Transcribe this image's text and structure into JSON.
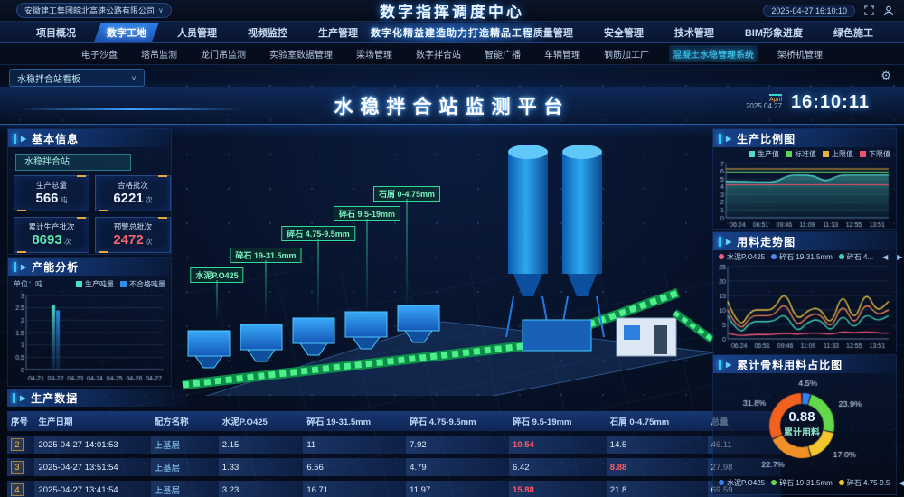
{
  "topbar": {
    "company": "安徽建工集团皖北高速公路有限公司",
    "title": "数字指挥调度中心",
    "datetime": "2025-04-27 16:10:10"
  },
  "nav": {
    "left": [
      "项目概况",
      "数字工地",
      "人员管理",
      "视频监控",
      "生产管理"
    ],
    "active": "数字工地",
    "banner": "数字化精益建造助力打造精品工程",
    "right": [
      "质量管理",
      "安全管理",
      "技术管理",
      "BIM形象进度",
      "绿色施工"
    ]
  },
  "subnav": {
    "items": [
      "电子沙盘",
      "塔吊监测",
      "龙门吊监测",
      "实验室数据管理",
      "梁场管理",
      "数字拌合站",
      "智能广播",
      "车辆管理",
      "钢筋加工厂",
      "混凝土水稳管理系统",
      "架桥机管理"
    ],
    "active": "混凝土水稳管理系统"
  },
  "board": {
    "selector": "水稳拌合站看板"
  },
  "hero": {
    "title": "水稳拌合站监测平台",
    "month": "April",
    "date": "2025.04.27",
    "time": "16:10:11"
  },
  "basic_info": {
    "title": "基本信息",
    "station_tag": "水稳拌合站",
    "stats": [
      {
        "label": "生产总量",
        "value": "566",
        "unit": "吨",
        "color": "#eaf4ff"
      },
      {
        "label": "合格批次",
        "value": "6221",
        "unit": "次",
        "color": "#eaf4ff"
      },
      {
        "label": "累计生产批次",
        "value": "8693",
        "unit": "次",
        "color": "#5ee8b0"
      },
      {
        "label": "预警总批次",
        "value": "2472",
        "unit": "次",
        "color": "#f56470"
      }
    ]
  },
  "production_table": {
    "title": "生产数据",
    "headers": [
      "序号",
      "生产日期",
      "配方名称",
      "水泥P.O425",
      "碎石 19-31.5mm",
      "碎石 4.75-9.5mm",
      "碎石 9.5-19mm",
      "石屑 0-4.75mm",
      "总量"
    ],
    "rows": [
      {
        "cells": [
          "2",
          "2025-04-27 14:01:53",
          "上基层",
          "2.15",
          "11",
          "7.92",
          "10.54",
          "14.5",
          "46.11"
        ],
        "alert_cols": [
          6
        ]
      },
      {
        "cells": [
          "3",
          "2025-04-27 13:51:54",
          "上基层",
          "1.33",
          "6.56",
          "4.79",
          "6.42",
          "8.88",
          "27.98"
        ],
        "alert_cols": [
          7
        ]
      },
      {
        "cells": [
          "4",
          "2025-04-27 13:41:54",
          "上基层",
          "3.23",
          "16.71",
          "11.97",
          "15.88",
          "21.8",
          "69.59"
        ],
        "alert_cols": [
          6
        ]
      }
    ]
  },
  "scene": {
    "labels": [
      "水泥P.O425",
      "碎石 19-31.5mm",
      "碎石 4.75-9.5mm",
      "碎石 9.5-19mm",
      "石屑 0-4.75mm"
    ]
  },
  "chart_data": [
    {
      "id": "capacity",
      "type": "bar",
      "title": "产能分析",
      "unit_label": "单位：吨",
      "categories": [
        "04-21",
        "04-22",
        "04-23",
        "04-24",
        "04-25",
        "04-26",
        "04-27"
      ],
      "series": [
        {
          "name": "生产吨量",
          "color": "#49e0c8",
          "values": [
            0,
            2.6,
            0,
            0,
            0,
            0,
            0
          ]
        },
        {
          "name": "不合格吨量",
          "color": "#2f8fe8",
          "values": [
            0,
            2.4,
            0,
            0,
            0,
            0,
            0
          ]
        }
      ],
      "ylim": [
        0,
        3
      ],
      "yticks": [
        0,
        0.5,
        1,
        1.5,
        2,
        2.5,
        3
      ],
      "legend_position": "top-right",
      "grid": true
    },
    {
      "id": "ratio",
      "type": "area",
      "title": "生产比例图",
      "x": [
        "06:24",
        "06:51",
        "09:46",
        "11:09",
        "11:33",
        "12:55",
        "13:51"
      ],
      "ylim": [
        0,
        7
      ],
      "yticks": [
        0,
        1,
        2,
        3,
        4,
        5,
        6,
        7
      ],
      "series": [
        {
          "name": "生产值",
          "color": "#52d8c8",
          "kind": "area",
          "values": [
            4.7,
            4.7,
            4.65,
            4.6,
            4.6,
            5.5,
            5.5,
            5.45,
            4.6,
            5.5,
            5.5,
            5.5,
            5.5,
            5.5
          ]
        },
        {
          "name": "标准值",
          "color": "#55d455",
          "kind": "line",
          "values": [
            5.9,
            5.9,
            5.9,
            5.9,
            5.9,
            5.9,
            5.9,
            5.9,
            5.9,
            5.9,
            5.9,
            5.9,
            5.9,
            5.9
          ]
        },
        {
          "name": "上限值",
          "color": "#e8b33e",
          "kind": "line",
          "values": [
            6.3,
            6.3,
            6.3,
            6.3,
            6.3,
            6.3,
            6.3,
            6.3,
            6.3,
            6.3,
            6.3,
            6.3,
            6.3,
            6.3
          ]
        },
        {
          "name": "下限值",
          "color": "#f0506a",
          "kind": "line",
          "values": [
            4.25,
            4.25,
            4.25,
            4.25,
            4.25,
            4.25,
            4.25,
            4.25,
            4.25,
            4.25,
            4.25,
            4.25,
            4.25,
            4.25
          ]
        }
      ],
      "legend_position": "top",
      "grid": false
    },
    {
      "id": "trend",
      "type": "line",
      "title": "用料走势图",
      "x": [
        "06:24",
        "06:51",
        "09:46",
        "11:09",
        "11:33",
        "12:55",
        "13:51"
      ],
      "ylim": [
        0,
        25
      ],
      "yticks": [
        0,
        5,
        10,
        15,
        20,
        25
      ],
      "legend_visible": [
        {
          "name": "水泥P.O425",
          "color": "#f05a80"
        },
        {
          "name": "碎石 19-31.5mm",
          "color": "#4f8af0"
        },
        {
          "name": "碎石 4...",
          "color": "#3ed0b8"
        }
      ],
      "series": [
        {
          "name": "",
          "color": "#e8c440",
          "values": [
            13,
            3,
            10,
            10,
            10,
            17,
            6,
            10,
            11,
            4,
            17,
            5,
            17,
            9,
            13
          ]
        },
        {
          "name": "",
          "color": "#f08055",
          "values": [
            10,
            2,
            8,
            8,
            8,
            13,
            4,
            8,
            9,
            3,
            13,
            4,
            13,
            8,
            10
          ]
        },
        {
          "name": "",
          "color": "#3ed0b8",
          "values": [
            8,
            1,
            6,
            6,
            6,
            9,
            2,
            6,
            7,
            2,
            9,
            3,
            9,
            6,
            8
          ]
        },
        {
          "name": "",
          "color": "#f05a80",
          "values": [
            2,
            1,
            1.5,
            1.5,
            1.5,
            2,
            1.5,
            2,
            2,
            1.5,
            2.5,
            2,
            2.5,
            2,
            2
          ]
        }
      ],
      "legend_position": "top",
      "grid": false
    },
    {
      "id": "aggregate",
      "type": "donut",
      "title": "累计骨料用料占比图",
      "center_value": "0.88",
      "center_label": "累计用料",
      "slices": [
        {
          "label": "4.5%",
          "pct": 4.5,
          "color": "#3a7ef2"
        },
        {
          "label": "23.9%",
          "pct": 23.9,
          "color": "#62d84a"
        },
        {
          "label": "17.0%",
          "pct": 17.0,
          "color": "#f2c52e"
        },
        {
          "label": "22.7%",
          "pct": 22.7,
          "color": "#f29028"
        },
        {
          "label": "31.8%",
          "pct": 31.8,
          "color": "#f2611e"
        }
      ],
      "legend_visible": [
        {
          "name": "水泥P.O425",
          "color": "#3a7ef2"
        },
        {
          "name": "碎石 19-31.5mm",
          "color": "#62d84a"
        },
        {
          "name": "碎石 4.75-9.5",
          "color": "#f2c52e"
        }
      ],
      "legend_position": "bottom"
    }
  ]
}
